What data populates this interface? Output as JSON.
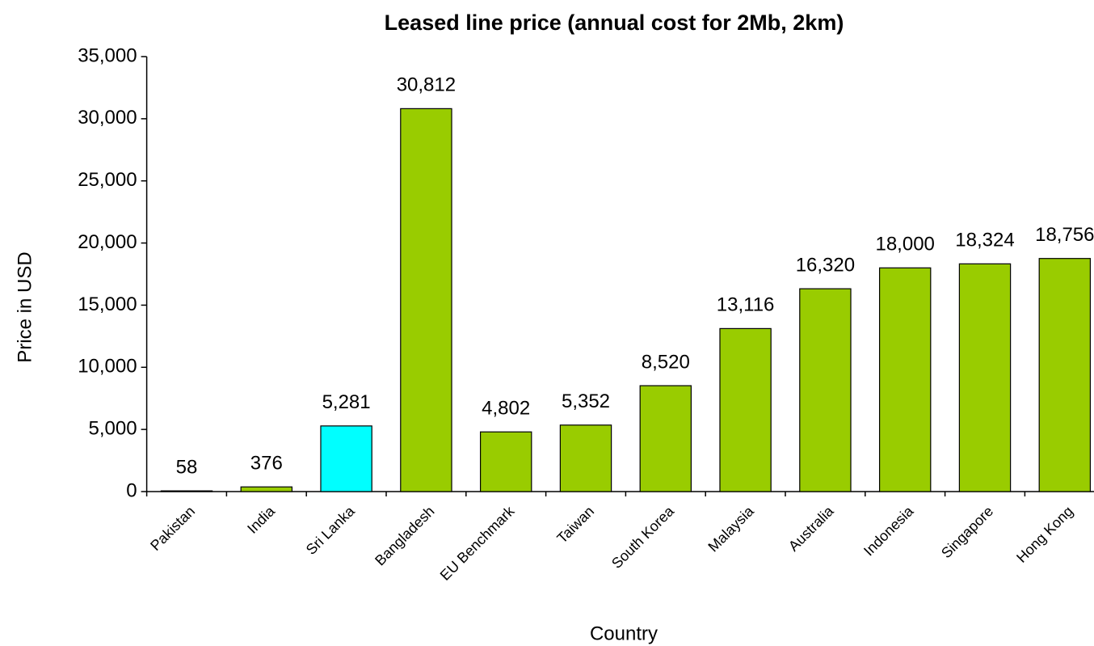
{
  "chart_data": {
    "type": "bar",
    "title": "Leased line price (annual cost for 2Mb, 2km)",
    "x_label": "Country",
    "y_label": "Price in USD",
    "categories": [
      "Pakistan",
      "India",
      "Sri Lanka",
      "Bangladesh",
      "EU Benchmark",
      "Taiwan",
      "South Korea",
      "Malaysia",
      "Australia",
      "Indonesia",
      "Singapore",
      "Hong Kong"
    ],
    "values": [
      58,
      376,
      5281,
      30812,
      4802,
      5352,
      8520,
      13116,
      16320,
      18000,
      18324,
      18756
    ],
    "value_labels": [
      "58",
      "376",
      "5,281",
      "30,812",
      "4,802",
      "5,352",
      "8,520",
      "13,116",
      "16,320",
      "18,000",
      "18,324",
      "18,756"
    ],
    "colors": [
      "#99cc00",
      "#99cc00",
      "#00ffff",
      "#99cc00",
      "#99cc00",
      "#99cc00",
      "#99cc00",
      "#99cc00",
      "#99cc00",
      "#99cc00",
      "#99cc00",
      "#99cc00"
    ],
    "ylim": [
      0,
      35000
    ],
    "yticks": [
      0,
      {
        "value": 5000,
        "label": "5,000"
      },
      {
        "value": 10000,
        "label": "10,000"
      },
      {
        "value": 15000,
        "label": "15,000"
      },
      {
        "value": 20000,
        "label": "20,000"
      },
      {
        "value": 25000,
        "label": "25,000"
      },
      {
        "value": 30000,
        "label": "30,000"
      },
      {
        "value": 35000,
        "label": "35,000"
      }
    ],
    "grid": false
  }
}
